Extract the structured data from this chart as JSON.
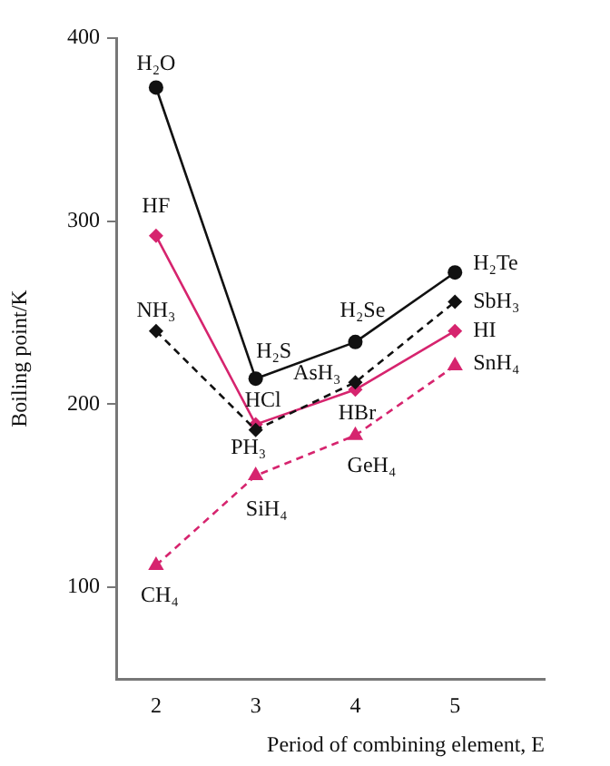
{
  "chart_data": {
    "type": "line",
    "xlabel": "Period of combining element, E",
    "ylabel": "Boiling point/K",
    "xlim": [
      1.6,
      5.9
    ],
    "xticks": [
      2,
      3,
      4,
      5
    ],
    "ylim": [
      50,
      400
    ],
    "yticks": [
      100,
      200,
      300,
      400
    ],
    "grid": false,
    "legend": false,
    "x": [
      2,
      3,
      4,
      5
    ],
    "series": [
      {
        "color": "#111111",
        "values": [
          373,
          214,
          234,
          272
        ],
        "marker": "circle",
        "line_style": "solid"
      },
      {
        "color": "#111111",
        "values": [
          240,
          186,
          212,
          256
        ],
        "marker": "diamond",
        "line_style": "dashed"
      },
      {
        "color": "#d6246e",
        "values": [
          292,
          189,
          208,
          240
        ],
        "marker": "diamond",
        "line_style": "solid"
      },
      {
        "color": "#d6246e",
        "values": [
          112,
          161,
          183,
          221
        ],
        "marker": "triangle",
        "line_style": "dashed"
      }
    ],
    "annotations": [
      {
        "text": "H₂O",
        "x": 2,
        "y": 373
      },
      {
        "text": "H₂S",
        "x": 3,
        "y": 214
      },
      {
        "text": "H₂Se",
        "x": 4,
        "y": 234
      },
      {
        "text": "H₂Te",
        "x": 5,
        "y": 272
      },
      {
        "text": "NH₃",
        "x": 2,
        "y": 240
      },
      {
        "text": "PH₃",
        "x": 3,
        "y": 186
      },
      {
        "text": "AsH₃",
        "x": 4,
        "y": 212
      },
      {
        "text": "SbH₃",
        "x": 5,
        "y": 256
      },
      {
        "text": "HF",
        "x": 2,
        "y": 292
      },
      {
        "text": "HCl",
        "x": 3,
        "y": 189
      },
      {
        "text": "HBr",
        "x": 4,
        "y": 208
      },
      {
        "text": "HI",
        "x": 5,
        "y": 240
      },
      {
        "text": "CH₄",
        "x": 2,
        "y": 112
      },
      {
        "text": "SiH₄",
        "x": 3,
        "y": 161
      },
      {
        "text": "GeH₄",
        "x": 4,
        "y": 183
      },
      {
        "text": "SnH₄",
        "x": 5,
        "y": 221
      }
    ]
  }
}
